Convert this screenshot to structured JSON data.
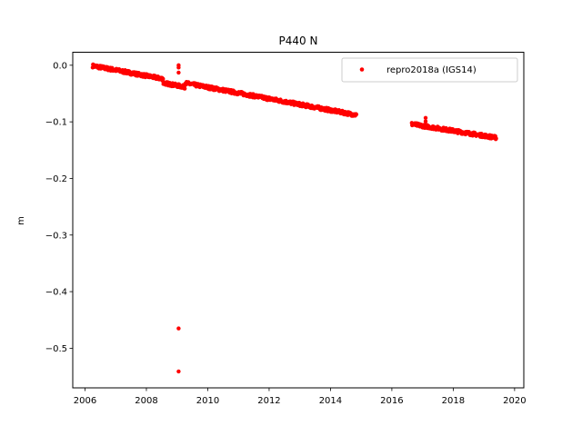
{
  "chart_data": {
    "type": "scatter",
    "title": "P440 N",
    "xlabel": "",
    "ylabel": "m",
    "xlim": [
      2005.6,
      2020.3
    ],
    "ylim": [
      -0.57,
      0.023
    ],
    "xticks": [
      2006,
      2008,
      2010,
      2012,
      2014,
      2016,
      2018,
      2020
    ],
    "yticks": [
      0.0,
      -0.1,
      -0.2,
      -0.3,
      -0.4,
      -0.5
    ],
    "ytick_labels": [
      "0.0",
      "−0.1",
      "−0.2",
      "−0.3",
      "−0.4",
      "−0.5"
    ],
    "grid": false,
    "legend_position": "top-right",
    "series": [
      {
        "name": "repro2018a (IGS14)",
        "color": "#ff0000",
        "segments": [
          {
            "x_start": 2006.25,
            "x_end": 2014.85,
            "y_start": -0.001,
            "y_end": -0.088
          },
          {
            "x_start": 2016.65,
            "x_end": 2019.4,
            "y_start": -0.104,
            "y_end": -0.128
          }
        ],
        "bumps": [
          {
            "x_start": 2008.55,
            "x_end": 2009.25,
            "dy": 0.007
          }
        ],
        "outliers": [
          {
            "x": 2009.05,
            "y": 0.0
          },
          {
            "x": 2009.05,
            "y": -0.004
          },
          {
            "x": 2009.05,
            "y": -0.013
          },
          {
            "x": 2009.05,
            "y": -0.465
          },
          {
            "x": 2009.05,
            "y": -0.541
          },
          {
            "x": 2017.1,
            "y": -0.093
          },
          {
            "x": 2017.1,
            "y": -0.099
          }
        ]
      }
    ]
  }
}
